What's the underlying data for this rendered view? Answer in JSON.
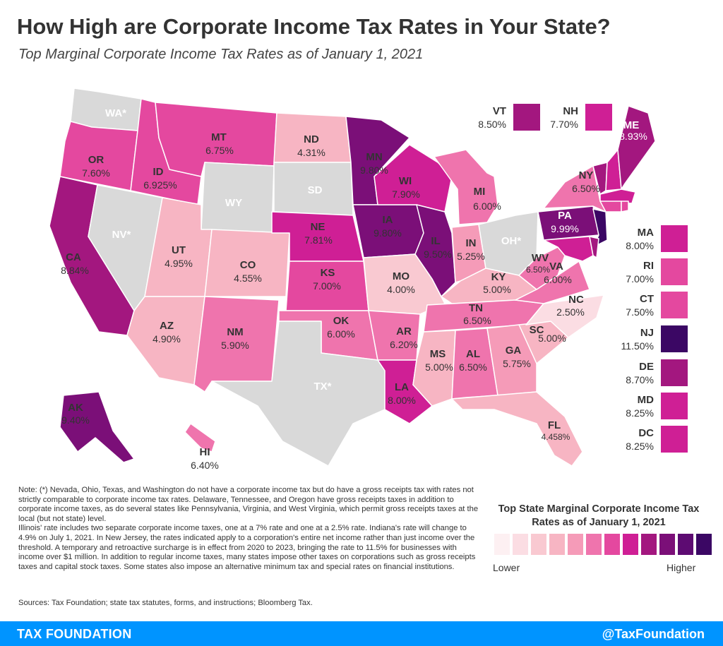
{
  "title": "How High are Corporate Income Tax Rates in Your State?",
  "subtitle": "Top Marginal Corporate Income Tax Rates as of January 1, 2021",
  "colors": {
    "none": "#d9d9d9",
    "scale": [
      "#fdf0f2",
      "#fbdde3",
      "#f9c9d1",
      "#f7b5c3",
      "#f59bb8",
      "#ef74ad",
      "#e4489f",
      "#cf1f95",
      "#a3177f",
      "#7b0f78",
      "#5d0b72",
      "#3b0764"
    ],
    "footer": "#0094ff"
  },
  "states": {
    "WA": {
      "label": "WA*",
      "rate": null
    },
    "OR": {
      "label": "OR",
      "rate": "7.60%"
    },
    "CA": {
      "label": "CA",
      "rate": "8.84%"
    },
    "NV": {
      "label": "NV*",
      "rate": null
    },
    "ID": {
      "label": "ID",
      "rate": "6.925%"
    },
    "MT": {
      "label": "MT",
      "rate": "6.75%"
    },
    "WY": {
      "label": "WY",
      "rate": null
    },
    "UT": {
      "label": "UT",
      "rate": "4.95%"
    },
    "AZ": {
      "label": "AZ",
      "rate": "4.90%"
    },
    "CO": {
      "label": "CO",
      "rate": "4.55%"
    },
    "NM": {
      "label": "NM",
      "rate": "5.90%"
    },
    "ND": {
      "label": "ND",
      "rate": "4.31%"
    },
    "SD": {
      "label": "SD",
      "rate": null
    },
    "NE": {
      "label": "NE",
      "rate": "7.81%"
    },
    "KS": {
      "label": "KS",
      "rate": "7.00%"
    },
    "OK": {
      "label": "OK",
      "rate": "6.00%"
    },
    "TX": {
      "label": "TX*",
      "rate": null
    },
    "MN": {
      "label": "MN",
      "rate": "9.80%"
    },
    "IA": {
      "label": "IA",
      "rate": "9.80%"
    },
    "MO": {
      "label": "MO",
      "rate": "4.00%"
    },
    "AR": {
      "label": "AR",
      "rate": "6.20%"
    },
    "LA": {
      "label": "LA",
      "rate": "8.00%"
    },
    "WI": {
      "label": "WI",
      "rate": "7.90%"
    },
    "IL": {
      "label": "IL",
      "rate": "9.50%"
    },
    "MI": {
      "label": "MI",
      "rate": "6.00%"
    },
    "IN": {
      "label": "IN",
      "rate": "5.25%"
    },
    "OH": {
      "label": "OH*",
      "rate": null
    },
    "KY": {
      "label": "KY",
      "rate": "5.00%"
    },
    "TN": {
      "label": "TN",
      "rate": "6.50%"
    },
    "MS": {
      "label": "MS",
      "rate": "5.00%"
    },
    "AL": {
      "label": "AL",
      "rate": "6.50%"
    },
    "GA": {
      "label": "GA",
      "rate": "5.75%"
    },
    "FL": {
      "label": "FL",
      "rate": "4.458%"
    },
    "SC": {
      "label": "SC",
      "rate": "5.00%"
    },
    "NC": {
      "label": "NC",
      "rate": "2.50%"
    },
    "VA": {
      "label": "VA",
      "rate": "6.00%"
    },
    "WV": {
      "label": "WV",
      "rate": "6.50%"
    },
    "PA": {
      "label": "PA",
      "rate": "9.99%"
    },
    "NY": {
      "label": "NY",
      "rate": "6.50%"
    },
    "ME": {
      "label": "ME",
      "rate": "8.93%"
    },
    "AK": {
      "label": "AK",
      "rate": "9.40%"
    },
    "HI": {
      "label": "HI",
      "rate": "6.40%"
    }
  },
  "insets": {
    "VT": {
      "label": "VT",
      "rate": "8.50%"
    },
    "NH": {
      "label": "NH",
      "rate": "7.70%"
    },
    "MA": {
      "label": "MA",
      "rate": "8.00%"
    },
    "RI": {
      "label": "RI",
      "rate": "7.00%"
    },
    "CT": {
      "label": "CT",
      "rate": "7.50%"
    },
    "NJ": {
      "label": "NJ",
      "rate": "11.50%"
    },
    "DE": {
      "label": "DE",
      "rate": "8.70%"
    },
    "MD": {
      "label": "MD",
      "rate": "8.25%"
    },
    "DC": {
      "label": "DC",
      "rate": "8.25%"
    }
  },
  "note": "Note: (*) Nevada, Ohio, Texas, and Washington do not have a corporate income tax but do have a gross receipts tax with rates not strictly comparable to corporate income tax rates. Delaware, Tennessee, and Oregon have gross receipts taxes in addition to corporate income taxes, as do several states like Pennsylvania, Virginia, and West Virginia, which permit gross receipts taxes at the local (but not state) level.",
  "note2": "Illinois' rate includes two separate corporate income taxes, one at a 7% rate and one at a 2.5% rate.  Indiana's rate will change to 4.9% on July 1, 2021.  In New Jersey, the rates indicated apply to a corporation's entire net income rather than just income over the threshold. A temporary and retroactive surcharge is in effect from 2020 to 2023, bringing the rate to 11.5% for businesses with income over $1 million. In addition to regular income taxes, many states impose other taxes on corporations such as gross receipts taxes and capital stock taxes. Some states also impose an alternative minimum tax and special rates on financial institutions.",
  "sources": "Sources: Tax Foundation; state tax statutes, forms, and instructions; Bloomberg Tax.",
  "legend": {
    "title": "Top State Marginal Corporate Income Tax Rates as of January 1, 2021",
    "low": "Lower",
    "high": "Higher"
  },
  "footer": {
    "brand": "TAX FOUNDATION",
    "handle": "@TaxFoundation"
  }
}
